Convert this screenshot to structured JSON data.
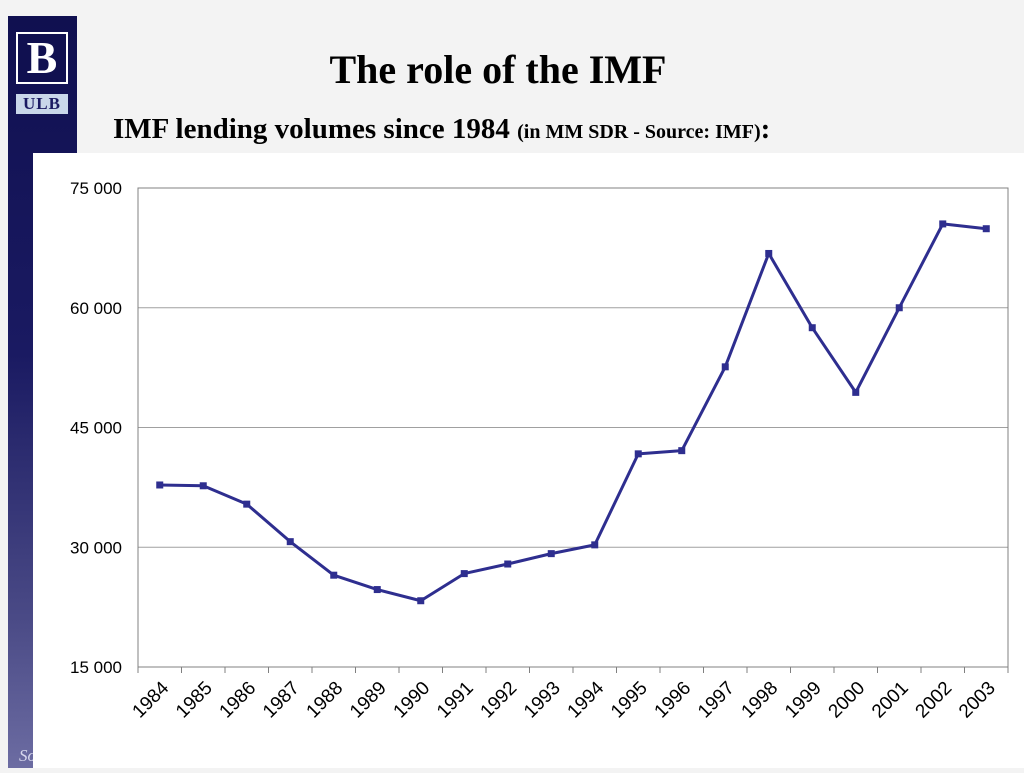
{
  "slide": {
    "logo_letter": "B",
    "logo_text": "ULB",
    "footer_fragment": "So",
    "title": "The role of the IMF",
    "subtitle_main": "IMF lending volumes since 1984",
    "subtitle_note": "(in MM SDR - Source: IMF)",
    "subtitle_colon": ":"
  },
  "colors": {
    "sidebar": "#1a1a62",
    "line": "#2e2e8f",
    "grid": "#a0a0a0"
  },
  "chart_data": {
    "type": "line",
    "title": "",
    "xlabel": "",
    "ylabel": "",
    "categories": [
      "1984",
      "1985",
      "1986",
      "1987",
      "1988",
      "1989",
      "1990",
      "1991",
      "1992",
      "1993",
      "1994",
      "1995",
      "1996",
      "1997",
      "1998",
      "1999",
      "2000",
      "2001",
      "2002",
      "2003"
    ],
    "series": [
      {
        "values": [
          37800,
          37700,
          35400,
          30700,
          26500,
          24700,
          23300,
          26700,
          27900,
          29200,
          30300,
          41700,
          42100,
          52600,
          66800,
          57500,
          49400,
          60000,
          70500,
          69900
        ]
      }
    ],
    "ylim": [
      15000,
      75000
    ],
    "yticks": [
      15000,
      30000,
      45000,
      60000,
      75000
    ],
    "ytick_labels": [
      "15 000",
      "30 000",
      "45 000",
      "60 000",
      "75 000"
    ],
    "grid": true,
    "legend": "none"
  }
}
